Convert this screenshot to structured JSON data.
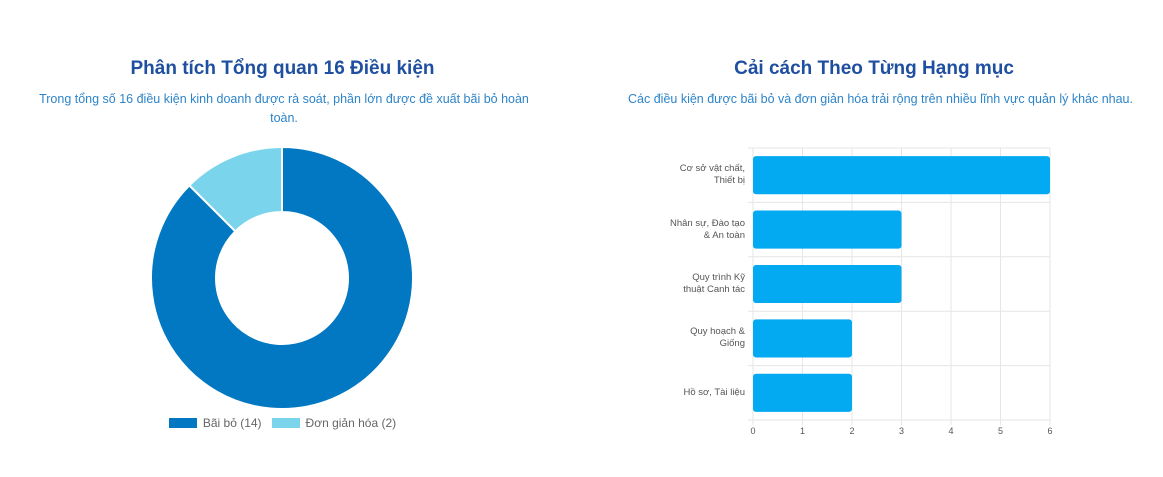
{
  "left": {
    "title": "Phân tích Tổng quan 16 Điều kiện",
    "subtitle": "Trong tổng số 16 điều kiện kinh doanh được rà soát, phần lớn được đề xuất bãi bỏ hoàn toàn."
  },
  "right": {
    "title": "Cải cách Theo Từng Hạng mục",
    "subtitle": "Các điều kiện được bãi bỏ và đơn giản hóa trải rộng trên nhiều lĩnh vực quản lý khác nhau."
  },
  "chart_data": [
    {
      "type": "pie",
      "variant": "doughnut",
      "title": "Phân tích Tổng quan 16 Điều kiện",
      "categories": [
        "Bãi bỏ (14)",
        "Đơn giản hóa (2)"
      ],
      "values": [
        14,
        2
      ],
      "colors": [
        "#0277c2",
        "#79d4ec"
      ],
      "legend": "bottom"
    },
    {
      "type": "bar",
      "orientation": "horizontal",
      "title": "Cải cách Theo Từng Hạng mục",
      "categories": [
        [
          "Cơ sở vật chất,",
          "Thiết bị"
        ],
        [
          "Nhân sự, Đào tạo",
          "& An toàn"
        ],
        [
          "Quy trình Kỹ",
          "thuật Canh tác"
        ],
        [
          "Quy hoạch &",
          "Giống"
        ],
        [
          "Hồ sơ, Tài liệu"
        ]
      ],
      "values": [
        6,
        3,
        3,
        2,
        2
      ],
      "xlim": [
        0,
        6
      ],
      "xticks": [
        "0",
        "1",
        "2",
        "3",
        "4",
        "5",
        "6"
      ],
      "grid": true,
      "color": "#03a9f1"
    }
  ]
}
